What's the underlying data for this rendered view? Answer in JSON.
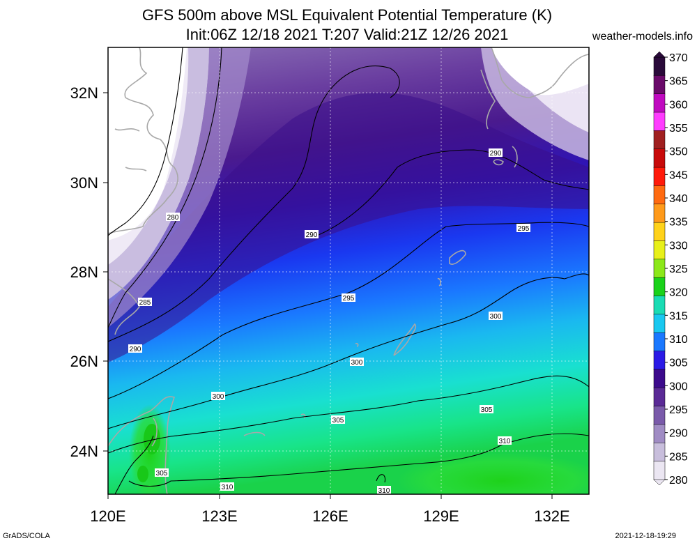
{
  "title_line1": "GFS 500m above MSL Equivalent Potential Temperature (K)",
  "title_line2": "Init:06Z 12/18 2021 T:207 Valid:21Z 12/26 2021",
  "site": "weather-models.info",
  "footer_left": "GrADS/COLA",
  "footer_right": "2021-12-18-19:29",
  "lon_ticks": [
    "120E",
    "123E",
    "126E",
    "129E",
    "132E"
  ],
  "lat_ticks": [
    "32N",
    "30N",
    "28N",
    "26N",
    "24N"
  ],
  "colorbar": {
    "labels": [
      "370",
      "365",
      "360",
      "355",
      "350",
      "345",
      "340",
      "335",
      "330",
      "325",
      "320",
      "315",
      "310",
      "305",
      "300",
      "295",
      "290",
      "285",
      "280"
    ],
    "colors": [
      "#2a0a3a",
      "#6a0a6a",
      "#c00ac0",
      "#ff3cff",
      "#a02020",
      "#c80a0a",
      "#ff1a0a",
      "#ff6a10",
      "#ff9a1a",
      "#ffd21a",
      "#e8f01a",
      "#8ce81a",
      "#1ad21a",
      "#1adcb4",
      "#19c8f0",
      "#1a78ff",
      "#2a1ae6",
      "#3c0a8c",
      "#5a2a96",
      "#7a5aaa",
      "#a08cc4",
      "#c8bedc",
      "#ebe6f2"
    ]
  },
  "contour_labels": [
    "280",
    "285",
    "290",
    "290",
    "290",
    "295",
    "295",
    "300",
    "300",
    "300",
    "305",
    "305",
    "305",
    "310",
    "310",
    "310"
  ]
}
